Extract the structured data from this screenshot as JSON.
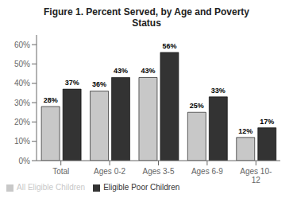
{
  "chart_data": {
    "type": "bar",
    "title": "Figure 1.  Percent Served, by Age and Poverty\nStatus",
    "categories": [
      "Total",
      "Ages 0-2",
      "Ages 3-5",
      "Ages 6-9",
      "Ages 10-\n12"
    ],
    "series": [
      {
        "name": "All Eligible Children",
        "color": "#c8c8c8",
        "values": [
          28,
          36,
          43,
          25,
          12
        ],
        "value_labels": [
          "28%",
          "36%",
          "43%",
          "25%",
          "12%"
        ]
      },
      {
        "name": "Eligible Poor Children",
        "color": "#333333",
        "values": [
          37,
          43,
          56,
          33,
          17
        ],
        "value_labels": [
          "37%",
          "43%",
          "56%",
          "33%",
          "17%"
        ]
      }
    ],
    "ylim": [
      0,
      65
    ],
    "yticks": [
      {
        "value": 0,
        "label": "0%"
      },
      {
        "value": 10,
        "label": "10%"
      },
      {
        "value": 20,
        "label": "20%"
      },
      {
        "value": 30,
        "label": "30%"
      },
      {
        "value": 40,
        "label": "40%"
      },
      {
        "value": 50,
        "label": "50%"
      },
      {
        "value": 60,
        "label": "60%"
      }
    ],
    "grid": false,
    "data_labels": true,
    "legend": "lower left"
  }
}
